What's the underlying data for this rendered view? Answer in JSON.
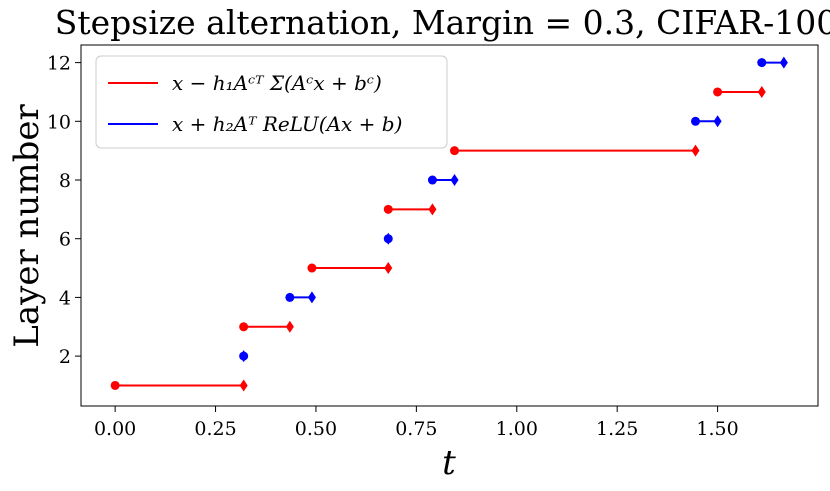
{
  "chart_data": {
    "type": "line",
    "title": "Stepsize alternation, Margin = 0.3, CIFAR-100",
    "xlabel": "t",
    "ylabel": "Layer number",
    "xlim": [
      -0.085,
      1.75
    ],
    "ylim": [
      0.3,
      12.6
    ],
    "xticks": [
      0.0,
      0.25,
      0.5,
      0.75,
      1.0,
      1.25,
      1.5
    ],
    "xtick_labels": [
      "0.00",
      "0.25",
      "0.50",
      "0.75",
      "1.00",
      "1.25",
      "1.50"
    ],
    "yticks": [
      2,
      4,
      6,
      8,
      10,
      12
    ],
    "ytick_labels": [
      "2",
      "4",
      "6",
      "8",
      "10",
      "12"
    ],
    "grid": false,
    "legend_position": "upper-left",
    "series": [
      {
        "name": "x − h₁Aᶜᵀ Σ(Aᶜx + bᶜ)",
        "color": "#ff0000",
        "segments": [
          {
            "layer": 1,
            "t_start": 0.0,
            "t_end": 0.32
          },
          {
            "layer": 3,
            "t_start": 0.32,
            "t_end": 0.435
          },
          {
            "layer": 5,
            "t_start": 0.49,
            "t_end": 0.68
          },
          {
            "layer": 7,
            "t_start": 0.68,
            "t_end": 0.79
          },
          {
            "layer": 9,
            "t_start": 0.845,
            "t_end": 1.445
          },
          {
            "layer": 11,
            "t_start": 1.5,
            "t_end": 1.61
          }
        ]
      },
      {
        "name": "x + h₂Aᵀ ReLU(Ax + b)",
        "color": "#0000ff",
        "segments": [
          {
            "layer": 2,
            "t_start": 0.32,
            "t_end": 0.32
          },
          {
            "layer": 4,
            "t_start": 0.435,
            "t_end": 0.49
          },
          {
            "layer": 6,
            "t_start": 0.68,
            "t_end": 0.68
          },
          {
            "layer": 8,
            "t_start": 0.79,
            "t_end": 0.845
          },
          {
            "layer": 10,
            "t_start": 1.445,
            "t_end": 1.5
          },
          {
            "layer": 12,
            "t_start": 1.61,
            "t_end": 1.665
          }
        ]
      }
    ]
  }
}
